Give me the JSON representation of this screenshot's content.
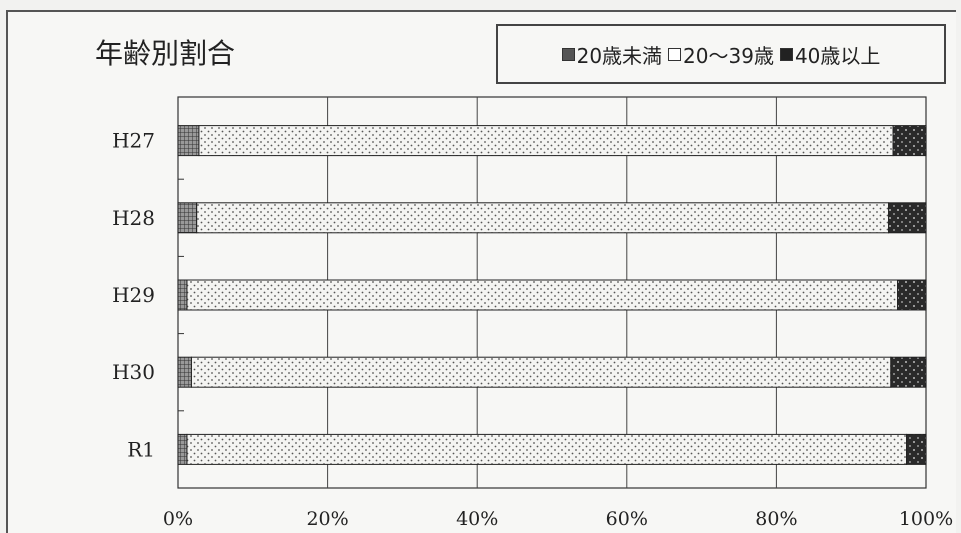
{
  "chart_data": {
    "type": "bar",
    "stacked": true,
    "orientation": "horizontal",
    "title": "年齢別割合",
    "categories": [
      "H27",
      "H28",
      "H29",
      "H30",
      "R1"
    ],
    "series": [
      {
        "name": "20歳未満",
        "values": [
          2.8,
          2.5,
          1.2,
          1.8,
          1.2
        ],
        "color": "#777777",
        "pattern": "grid"
      },
      {
        "name": "20～39歳",
        "values": [
          92.8,
          92.5,
          95.0,
          93.5,
          96.2
        ],
        "color": "#eeeeee",
        "pattern": "dots"
      },
      {
        "name": "40歳以上",
        "values": [
          4.4,
          5.0,
          3.8,
          4.7,
          2.6
        ],
        "color": "#333333",
        "pattern": "dark"
      }
    ],
    "xlim": [
      0,
      100
    ],
    "xticks": [
      "0%",
      "20%",
      "40%",
      "60%",
      "80%",
      "100%"
    ],
    "grid": true,
    "legend": "top-right"
  }
}
